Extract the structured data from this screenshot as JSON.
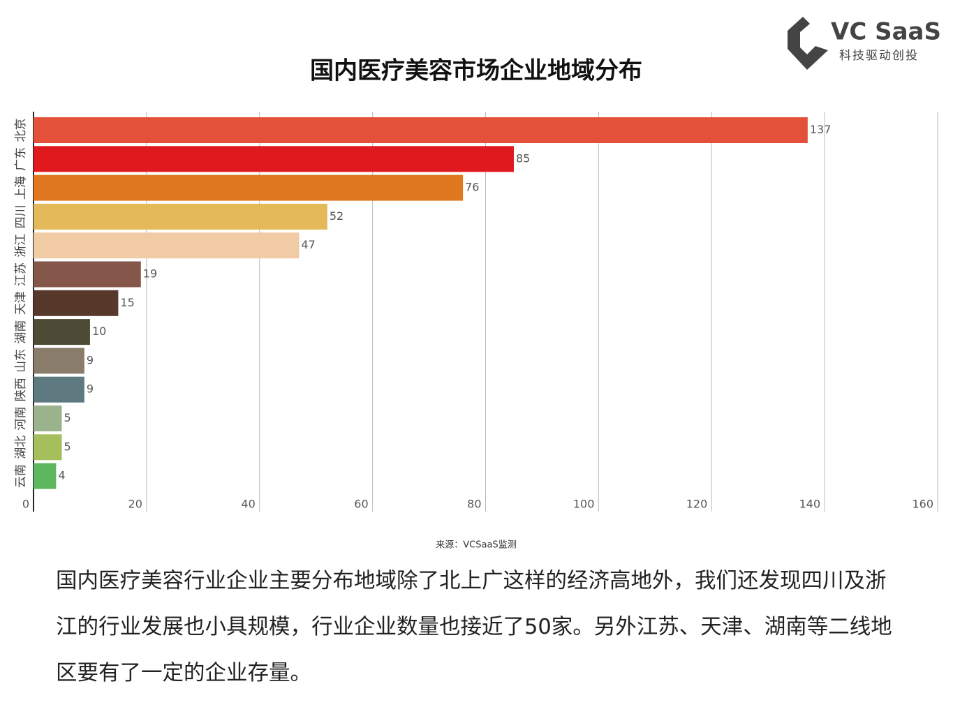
{
  "logo": {
    "name": "VC SaaS",
    "tagline": "科技驱动创投"
  },
  "chart_data": {
    "type": "hbar",
    "title": "国内医疗美容市场企业地域分布",
    "categories": [
      "北京",
      "广东",
      "上海",
      "四川",
      "浙江",
      "江苏",
      "天津",
      "湖南",
      "山东",
      "陕西",
      "河南",
      "湖北",
      "云南"
    ],
    "values": [
      137,
      85,
      76,
      52,
      47,
      19,
      15,
      10,
      9,
      9,
      5,
      5,
      4
    ],
    "colors": [
      "#e4513a",
      "#e0191f",
      "#e07820",
      "#e3b95a",
      "#f0cba3",
      "#84574a",
      "#57392c",
      "#4d4a35",
      "#8a7c6b",
      "#5e7a80",
      "#9ab38c",
      "#a4bf5c",
      "#5db75f"
    ],
    "xlim": [
      0,
      160
    ],
    "xticks": [
      0,
      20,
      40,
      60,
      80,
      100,
      120,
      140,
      160
    ],
    "grid": true
  },
  "source": "来源：VCSaaS监测",
  "paragraph": "国内医疗美容行业企业主要分布地域除了北上广这样的经济高地外，我们还发现四川及浙江的行业发展也小具规模，行业企业数量也接近了50家。另外江苏、天津、湖南等二线地区要有了一定的企业存量。"
}
